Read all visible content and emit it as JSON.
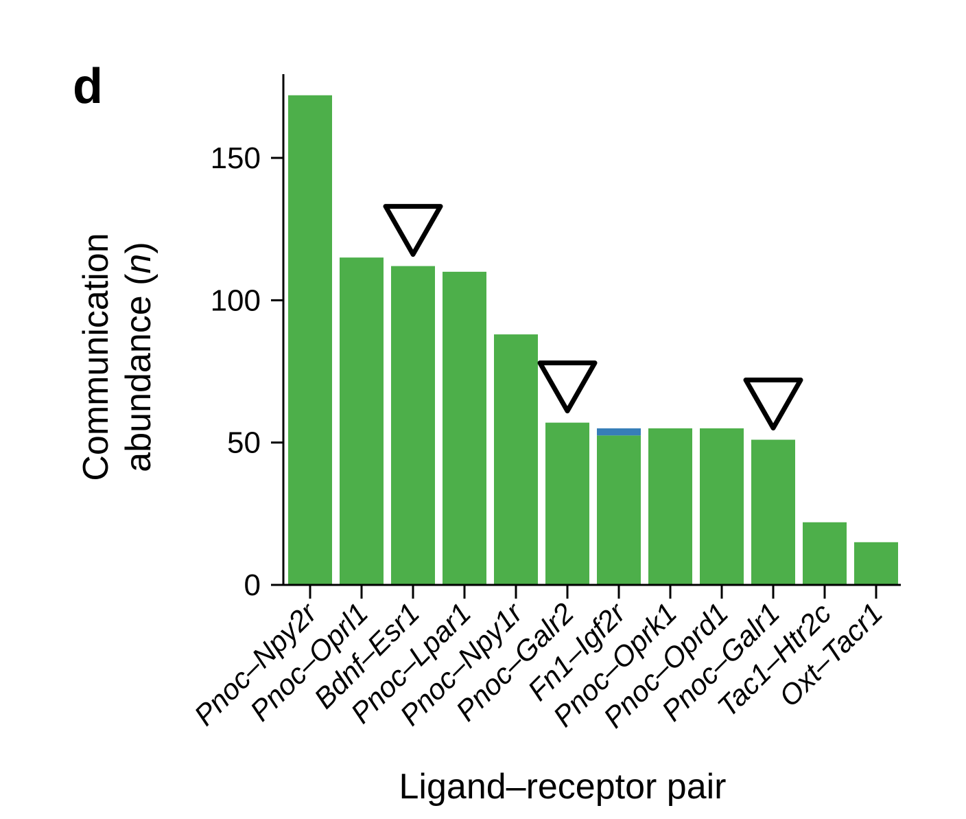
{
  "panel_label": "d",
  "chart_data": {
    "type": "bar",
    "title": "",
    "xlabel": "Ligand–receptor pair",
    "ylabel": {
      "line1": "Communication",
      "line2_pre": "abundance (",
      "line2_italic": "n",
      "line2_post": ")"
    },
    "categories": [
      "Pnoc–Npy2r",
      "Pnoc–Oprl1",
      "Bdnf–Esr1",
      "Pnoc–Lpar1",
      "Pnoc–Npy1r",
      "Pnoc–Galr2",
      "Fn1–Igf2r",
      "Pnoc–Oprk1",
      "Pnoc–Oprd1",
      "Pnoc–Galr1",
      "Tac1–Htr2c",
      "Oxt–Tacr1"
    ],
    "series": [
      {
        "name": "green-segment",
        "color": "#4daf4a",
        "values": [
          172,
          115,
          112,
          110,
          88,
          57,
          52.5,
          55,
          55,
          51,
          22,
          15
        ]
      },
      {
        "name": "blue-top-segment",
        "color": "#377eb8",
        "values": [
          0,
          0,
          0,
          0,
          0,
          0,
          2.5,
          0,
          0,
          0,
          0,
          0
        ]
      }
    ],
    "totals": [
      172,
      115,
      112,
      110,
      88,
      57,
      55,
      55,
      55,
      51,
      22,
      15
    ],
    "markers": {
      "symbol": "open-inverted-triangle",
      "indices": [
        2,
        5,
        9
      ],
      "categories": [
        "Bdnf–Esr1",
        "Pnoc–Galr2",
        "Pnoc–Galr1"
      ],
      "stroke_color": "#000000",
      "fill_color": "#ffffff"
    },
    "yticks": [
      0,
      50,
      100,
      150
    ],
    "ylim": [
      0,
      179
    ],
    "grid": false,
    "legend": "none",
    "axis_color": "#000000",
    "background_color": "#ffffff"
  }
}
